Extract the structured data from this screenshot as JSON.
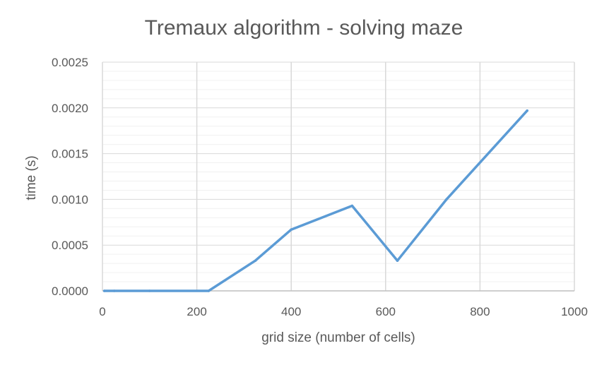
{
  "chart_data": {
    "type": "line",
    "title": "Tremaux algorithm - solving maze",
    "xlabel": "grid size (number of cells)",
    "ylabel": "time (s)",
    "xlim": [
      0,
      1000
    ],
    "ylim": [
      0,
      0.0025
    ],
    "x_ticks": [
      "0",
      "200",
      "400",
      "600",
      "800",
      "1000"
    ],
    "y_ticks": [
      "0.0000",
      "0.0005",
      "0.0010",
      "0.0015",
      "0.0020",
      "0.0025"
    ],
    "x_tick_values": [
      0,
      200,
      400,
      600,
      800,
      1000
    ],
    "y_tick_values": [
      0,
      0.0005,
      0.001,
      0.0015,
      0.002,
      0.0025
    ],
    "y_minor_step": 0.0001,
    "grid": true,
    "series": [
      {
        "color": "#5b9bd5",
        "x": [
          4,
          25,
          100,
          225,
          324,
          400,
          529,
          625,
          729,
          900
        ],
        "y": [
          0.0,
          0.0,
          0.0,
          0.0,
          0.00033,
          0.00067,
          0.00093,
          0.00033,
          0.001,
          0.00197
        ]
      }
    ]
  }
}
